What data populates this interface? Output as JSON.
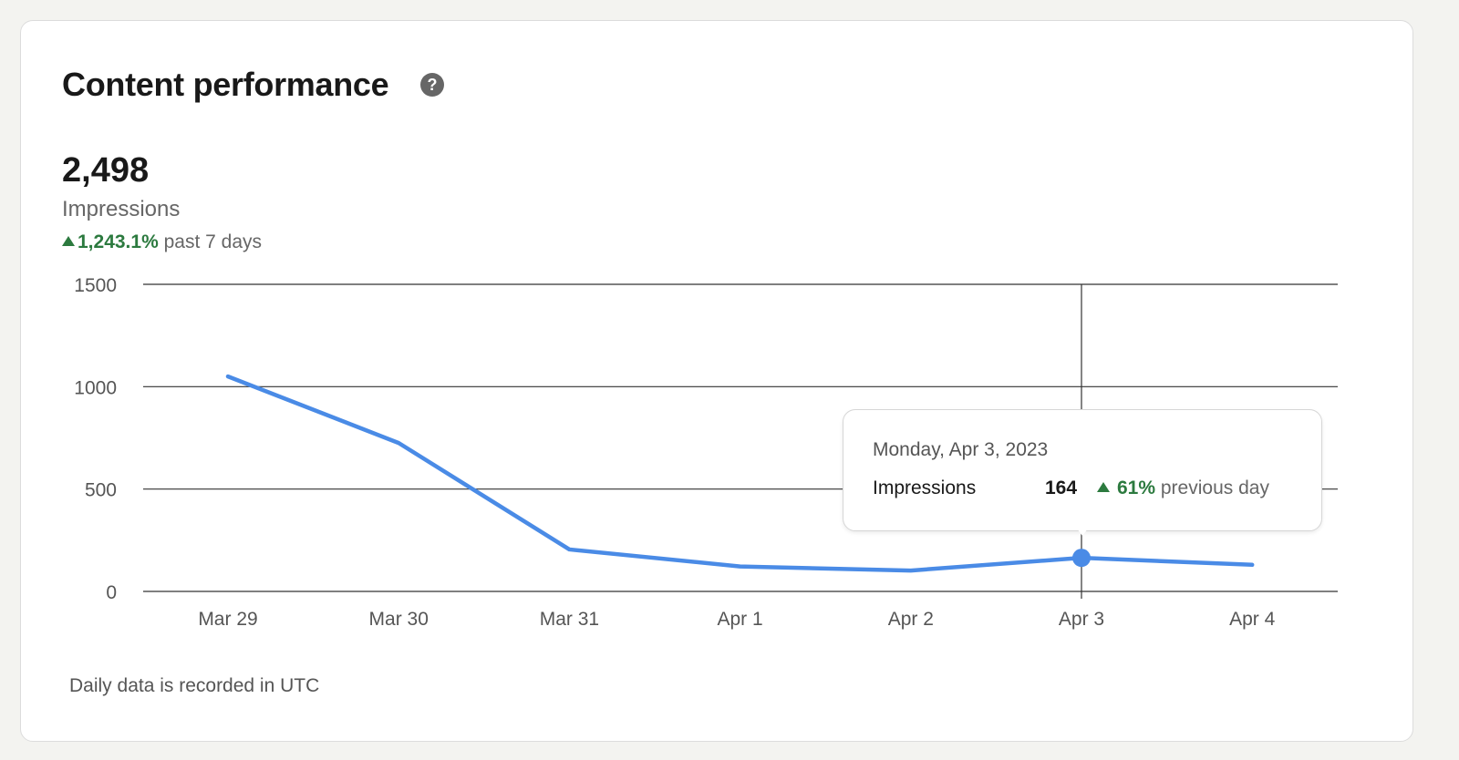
{
  "header": {
    "title": "Content performance",
    "help_icon": "question-circle-icon"
  },
  "summary": {
    "value": "2,498",
    "metric": "Impressions",
    "change": "1,243.1%",
    "change_period": "past 7 days",
    "change_direction": "up"
  },
  "footnote": "Daily data is recorded in UTC",
  "tooltip": {
    "date": "Monday, Apr 3, 2023",
    "label": "Impressions",
    "value": "164",
    "change": "61%",
    "change_period": "previous day"
  },
  "colors": {
    "line": "#4a8be6",
    "positive": "#2c7a3f",
    "grid": "#333333"
  },
  "chart_data": {
    "type": "line",
    "categories": [
      "Mar 29",
      "Mar 30",
      "Mar 31",
      "Apr 1",
      "Apr 2",
      "Apr 3",
      "Apr 4"
    ],
    "series": [
      {
        "values": [
          1050,
          725,
          205,
          122,
          102,
          164,
          130
        ]
      }
    ],
    "yticks": [
      "0",
      "500",
      "1000",
      "1500"
    ],
    "ylim": [
      0,
      1500
    ],
    "grid": true,
    "highlighted": "Apr 3"
  }
}
